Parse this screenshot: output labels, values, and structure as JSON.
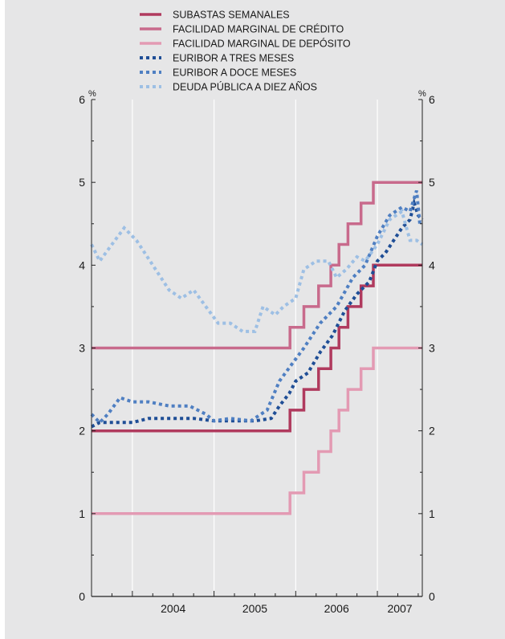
{
  "chart_data": {
    "type": "line",
    "title": "",
    "xlabel": "",
    "ylabel": "",
    "unit_left": "%",
    "unit_right": "%",
    "ylim": [
      0,
      6
    ],
    "y_ticks": [
      0,
      1,
      2,
      3,
      4,
      5,
      6
    ],
    "y_tick_labels": [
      "0",
      "1",
      "2",
      "3",
      "4",
      "5",
      "6"
    ],
    "x_range": [
      2003.5,
      2007.55
    ],
    "x_year_labels": [
      "2004",
      "2005",
      "2006",
      "2007"
    ],
    "grid": "vertical",
    "legend_position": "top",
    "colors": {
      "background": "#e6e6e7",
      "plot_background": "#e6e6e7",
      "grid": "#ffffff",
      "axis": "#222222"
    },
    "series": [
      {
        "name": "SUBASTAS SEMANALES",
        "style": "solid",
        "color": "#b03a5e",
        "step": true,
        "points": [
          [
            2003.5,
            2.0
          ],
          [
            2005.93,
            2.0
          ],
          [
            2005.93,
            2.25
          ],
          [
            2006.1,
            2.25
          ],
          [
            2006.1,
            2.5
          ],
          [
            2006.28,
            2.5
          ],
          [
            2006.28,
            2.75
          ],
          [
            2006.43,
            2.75
          ],
          [
            2006.43,
            3.0
          ],
          [
            2006.53,
            3.0
          ],
          [
            2006.53,
            3.25
          ],
          [
            2006.64,
            3.25
          ],
          [
            2006.64,
            3.5
          ],
          [
            2006.8,
            3.5
          ],
          [
            2006.8,
            3.75
          ],
          [
            2006.95,
            3.75
          ],
          [
            2006.95,
            4.0
          ],
          [
            2007.55,
            4.0
          ]
        ]
      },
      {
        "name": "FACILIDAD MARGINAL DE CRÉDITO",
        "style": "solid",
        "color": "#c86a8c",
        "step": true,
        "points": [
          [
            2003.5,
            3.0
          ],
          [
            2005.93,
            3.0
          ],
          [
            2005.93,
            3.25
          ],
          [
            2006.1,
            3.25
          ],
          [
            2006.1,
            3.5
          ],
          [
            2006.28,
            3.5
          ],
          [
            2006.28,
            3.75
          ],
          [
            2006.43,
            3.75
          ],
          [
            2006.43,
            4.0
          ],
          [
            2006.53,
            4.0
          ],
          [
            2006.53,
            4.25
          ],
          [
            2006.64,
            4.25
          ],
          [
            2006.64,
            4.5
          ],
          [
            2006.8,
            4.5
          ],
          [
            2006.8,
            4.75
          ],
          [
            2006.95,
            4.75
          ],
          [
            2006.95,
            5.0
          ],
          [
            2007.55,
            5.0
          ]
        ]
      },
      {
        "name": "FACILIDAD MARGINAL DE DEPÓSITO",
        "style": "solid",
        "color": "#e39ab3",
        "step": true,
        "points": [
          [
            2003.5,
            1.0
          ],
          [
            2005.93,
            1.0
          ],
          [
            2005.93,
            1.25
          ],
          [
            2006.1,
            1.25
          ],
          [
            2006.1,
            1.5
          ],
          [
            2006.28,
            1.5
          ],
          [
            2006.28,
            1.75
          ],
          [
            2006.43,
            1.75
          ],
          [
            2006.43,
            2.0
          ],
          [
            2006.53,
            2.0
          ],
          [
            2006.53,
            2.25
          ],
          [
            2006.64,
            2.25
          ],
          [
            2006.64,
            2.5
          ],
          [
            2006.8,
            2.5
          ],
          [
            2006.8,
            2.75
          ],
          [
            2006.95,
            2.75
          ],
          [
            2006.95,
            3.0
          ],
          [
            2007.55,
            3.0
          ]
        ]
      },
      {
        "name": "EURIBOR A TRES MESES",
        "style": "dotted",
        "color": "#1f4e96",
        "step": false,
        "points": [
          [
            2003.5,
            2.05
          ],
          [
            2003.6,
            2.1
          ],
          [
            2003.75,
            2.1
          ],
          [
            2004.0,
            2.1
          ],
          [
            2004.2,
            2.15
          ],
          [
            2004.5,
            2.15
          ],
          [
            2004.75,
            2.15
          ],
          [
            2005.0,
            2.12
          ],
          [
            2005.25,
            2.12
          ],
          [
            2005.5,
            2.12
          ],
          [
            2005.7,
            2.15
          ],
          [
            2005.8,
            2.3
          ],
          [
            2005.92,
            2.45
          ],
          [
            2006.0,
            2.6
          ],
          [
            2006.15,
            2.7
          ],
          [
            2006.3,
            2.95
          ],
          [
            2006.45,
            3.15
          ],
          [
            2006.6,
            3.45
          ],
          [
            2006.75,
            3.65
          ],
          [
            2006.9,
            3.8
          ],
          [
            2007.0,
            4.05
          ],
          [
            2007.1,
            4.15
          ],
          [
            2007.2,
            4.3
          ],
          [
            2007.3,
            4.45
          ],
          [
            2007.4,
            4.55
          ],
          [
            2007.45,
            4.75
          ],
          [
            2007.5,
            4.6
          ],
          [
            2007.55,
            4.55
          ]
        ]
      },
      {
        "name": "EURIBOR A DOCE MESES",
        "style": "dotted",
        "color": "#4f7fc2",
        "step": false,
        "points": [
          [
            2003.5,
            2.2
          ],
          [
            2003.6,
            2.1
          ],
          [
            2003.7,
            2.2
          ],
          [
            2003.85,
            2.4
          ],
          [
            2004.0,
            2.35
          ],
          [
            2004.2,
            2.35
          ],
          [
            2004.45,
            2.3
          ],
          [
            2004.7,
            2.3
          ],
          [
            2004.9,
            2.2
          ],
          [
            2005.0,
            2.12
          ],
          [
            2005.2,
            2.15
          ],
          [
            2005.45,
            2.12
          ],
          [
            2005.65,
            2.25
          ],
          [
            2005.8,
            2.6
          ],
          [
            2005.95,
            2.8
          ],
          [
            2006.1,
            3.0
          ],
          [
            2006.3,
            3.3
          ],
          [
            2006.5,
            3.5
          ],
          [
            2006.7,
            3.85
          ],
          [
            2006.85,
            4.0
          ],
          [
            2007.0,
            4.35
          ],
          [
            2007.15,
            4.6
          ],
          [
            2007.3,
            4.7
          ],
          [
            2007.4,
            4.65
          ],
          [
            2007.48,
            4.9
          ],
          [
            2007.52,
            4.5
          ]
        ]
      },
      {
        "name": "DEUDA PÚBLICA A DIEZ AÑOS",
        "style": "dotted",
        "color": "#9dbfe4",
        "step": false,
        "points": [
          [
            2003.5,
            4.25
          ],
          [
            2003.6,
            4.05
          ],
          [
            2003.75,
            4.25
          ],
          [
            2003.9,
            4.45
          ],
          [
            2004.05,
            4.3
          ],
          [
            2004.25,
            4.0
          ],
          [
            2004.45,
            3.7
          ],
          [
            2004.6,
            3.6
          ],
          [
            2004.75,
            3.7
          ],
          [
            2004.9,
            3.5
          ],
          [
            2005.05,
            3.3
          ],
          [
            2005.2,
            3.3
          ],
          [
            2005.35,
            3.2
          ],
          [
            2005.5,
            3.2
          ],
          [
            2005.6,
            3.5
          ],
          [
            2005.75,
            3.4
          ],
          [
            2005.85,
            3.5
          ],
          [
            2006.0,
            3.6
          ],
          [
            2006.1,
            3.95
          ],
          [
            2006.25,
            4.05
          ],
          [
            2006.4,
            4.05
          ],
          [
            2006.5,
            3.85
          ],
          [
            2006.62,
            3.95
          ],
          [
            2006.75,
            4.1
          ],
          [
            2006.85,
            4.05
          ],
          [
            2007.0,
            4.25
          ],
          [
            2007.15,
            4.55
          ],
          [
            2007.3,
            4.65
          ],
          [
            2007.4,
            4.3
          ],
          [
            2007.48,
            4.3
          ],
          [
            2007.55,
            4.25
          ]
        ]
      }
    ]
  }
}
